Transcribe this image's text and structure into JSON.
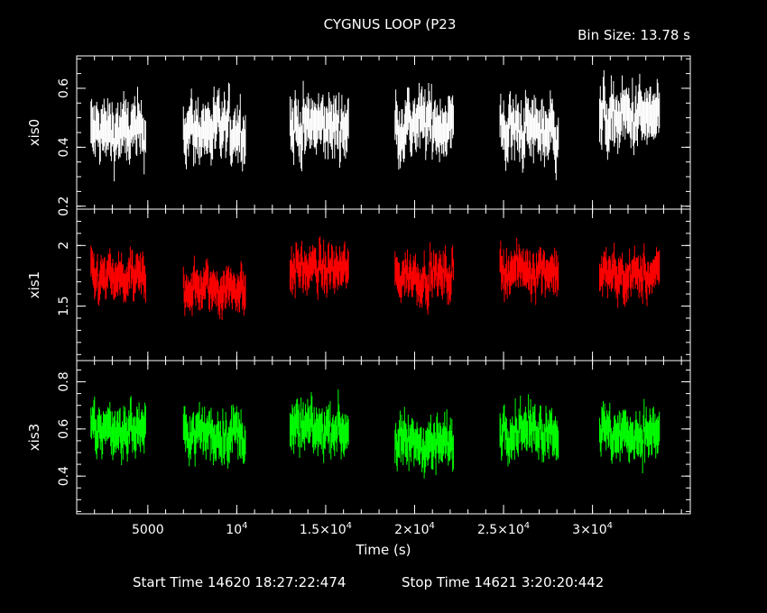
{
  "title": "CYGNUS LOOP (P23",
  "bin_size": "Bin Size: 13.78 s",
  "footer": {
    "start": "Start Time 14620 18:27:22:474",
    "stop": "Stop Time 14621   3:20:20:442"
  },
  "chart_data": {
    "type": "line",
    "xlabel": "Time (s)",
    "xlim": [
      1000,
      35500
    ],
    "x_ticks": [
      {
        "value": 5000,
        "label": "5000",
        "exp": ""
      },
      {
        "value": 10000,
        "label": "10",
        "exp": "4"
      },
      {
        "value": 15000,
        "label": "1.5×10",
        "exp": "4"
      },
      {
        "value": 20000,
        "label": "2×10",
        "exp": "4"
      },
      {
        "value": 25000,
        "label": "2.5×10",
        "exp": "4"
      },
      {
        "value": 30000,
        "label": "3×10",
        "exp": "4"
      }
    ],
    "segments": [
      [
        1800,
        4900
      ],
      [
        7000,
        10500
      ],
      [
        13000,
        16300
      ],
      [
        18900,
        22200
      ],
      [
        24800,
        28100
      ],
      [
        30400,
        33800
      ]
    ],
    "bin_size_s": 13.78,
    "panels": [
      {
        "name": "xis0",
        "color": "#ffffff",
        "ylim": [
          0.19,
          0.71
        ],
        "y_ticks": [
          0.2,
          0.4,
          0.6
        ],
        "y_tick_labels": [
          "0.2",
          "0.4",
          "0.6"
        ],
        "segment_means": [
          0.45,
          0.46,
          0.47,
          0.48,
          0.46,
          0.5
        ],
        "scatter": 0.09
      },
      {
        "name": "xis1",
        "color": "#ff0000",
        "ylim": [
          1.05,
          2.3
        ],
        "y_ticks": [
          1.5,
          2.0
        ],
        "y_tick_labels": [
          "1.5",
          "2"
        ],
        "segment_means": [
          1.72,
          1.65,
          1.8,
          1.75,
          1.8,
          1.75
        ],
        "scatter": 0.16
      },
      {
        "name": "xis3",
        "color": "#00ff00",
        "ylim": [
          0.24,
          0.89
        ],
        "y_ticks": [
          0.4,
          0.6,
          0.8
        ],
        "y_tick_labels": [
          "0.4",
          "0.6",
          "0.8"
        ],
        "segment_means": [
          0.6,
          0.58,
          0.6,
          0.54,
          0.6,
          0.58
        ],
        "scatter": 0.09
      }
    ]
  }
}
